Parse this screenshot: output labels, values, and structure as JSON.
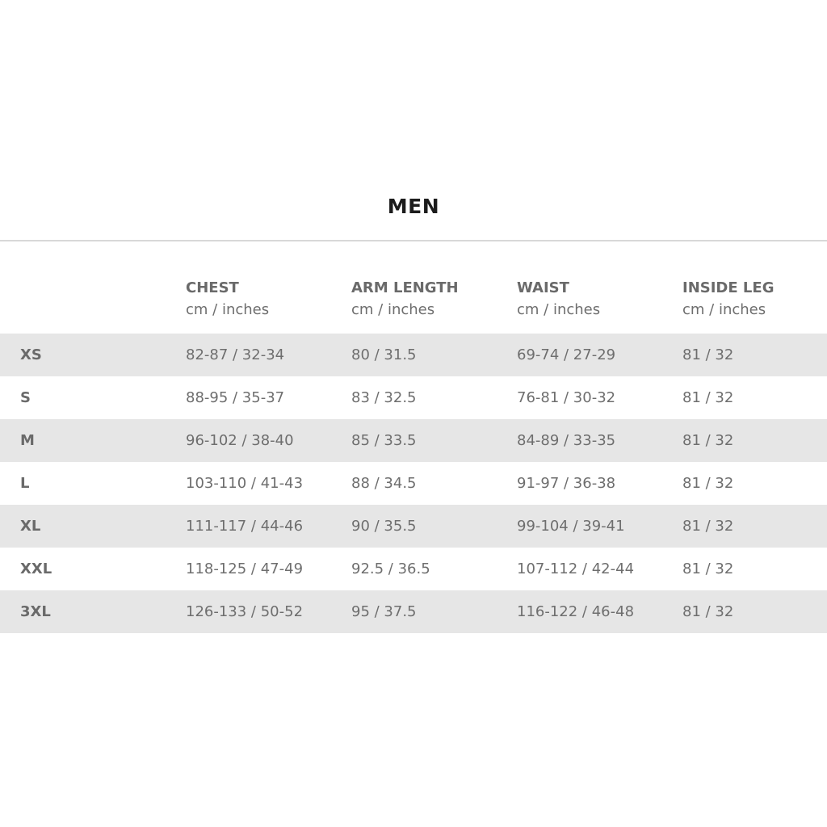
{
  "title": "MEN",
  "colors": {
    "row_shade": "#e6e6e6",
    "text": "#6e6e6e",
    "title": "#1c1c1c"
  },
  "columns": [
    {
      "name": "CHEST",
      "unit": "cm / inches"
    },
    {
      "name": "ARM LENGTH",
      "unit": "cm / inches"
    },
    {
      "name": "WAIST",
      "unit": "cm / inches"
    },
    {
      "name": "INSIDE LEG",
      "unit": "cm / inches"
    }
  ],
  "rows": [
    {
      "size": "XS",
      "values": [
        "82-87 / 32-34",
        "80 / 31.5",
        "69-74 / 27-29",
        "81 / 32"
      ]
    },
    {
      "size": "S",
      "values": [
        "88-95 / 35-37",
        "83 / 32.5",
        "76-81 / 30-32",
        "81 / 32"
      ]
    },
    {
      "size": "M",
      "values": [
        "96-102 / 38-40",
        "85 / 33.5",
        "84-89 / 33-35",
        "81 / 32"
      ]
    },
    {
      "size": "L",
      "values": [
        "103-110 / 41-43",
        "88 / 34.5",
        "91-97 / 36-38",
        "81 / 32"
      ]
    },
    {
      "size": "XL",
      "values": [
        "111-117 / 44-46",
        "90 / 35.5",
        "99-104 / 39-41",
        "81 / 32"
      ]
    },
    {
      "size": "XXL",
      "values": [
        "118-125 / 47-49",
        "92.5 / 36.5",
        "107-112 / 42-44",
        "81 / 32"
      ]
    },
    {
      "size": "3XL",
      "values": [
        "126-133 / 50-52",
        "95 / 37.5",
        "116-122 / 46-48",
        "81 / 32"
      ]
    }
  ]
}
